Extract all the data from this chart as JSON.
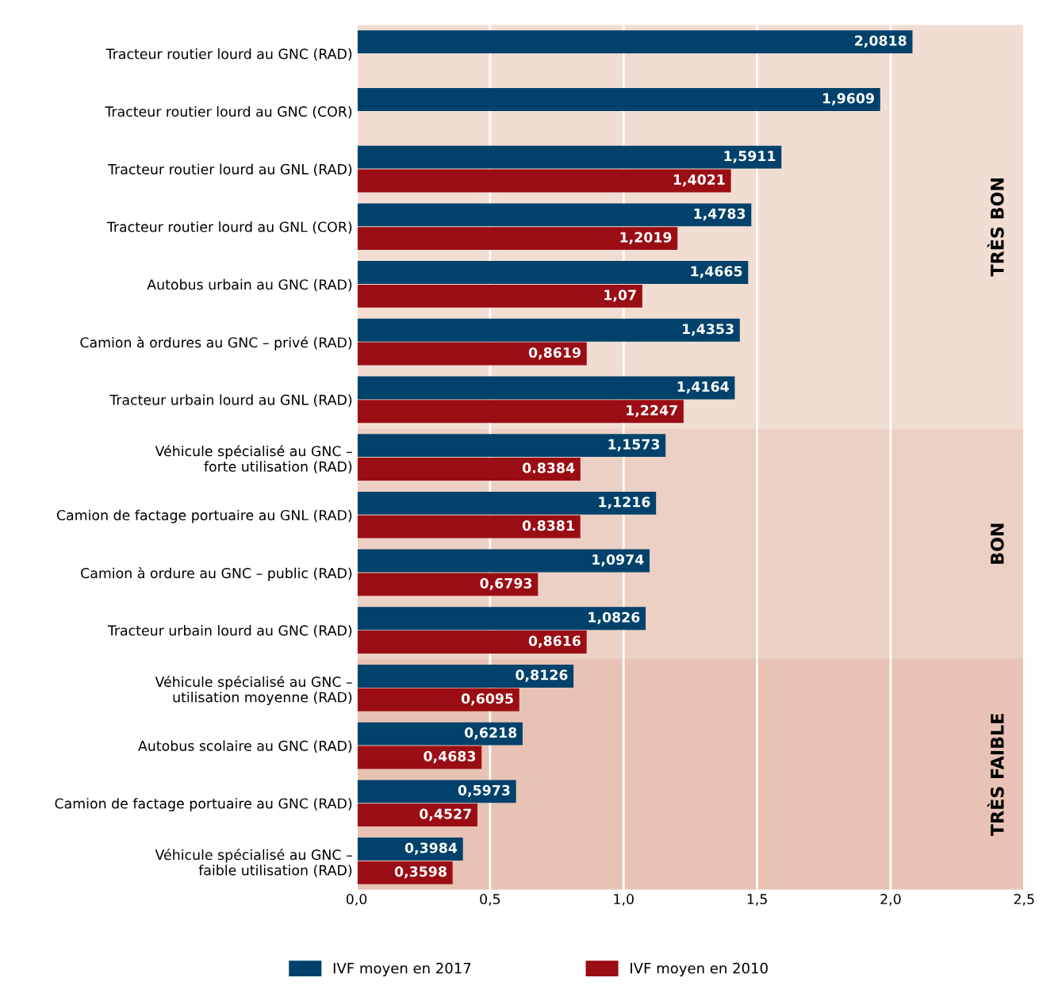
{
  "chart_data": {
    "type": "bar",
    "orientation": "horizontal",
    "categories": [
      "Tracteur routier lourd au GNC (RAD)",
      "Tracteur routier lourd au GNC (COR)",
      "Tracteur routier lourd au GNL (RAD)",
      "Tracteur routier lourd au GNL (COR)",
      "Autobus urbain au GNC (RAD)",
      "Camion à ordures au GNC – privé (RAD)",
      "Tracteur urbain lourd au GNL (RAD)",
      "Véhicule spécialisé au GNC –\nforte utilisation (RAD)",
      "Camion de factage portuaire au GNL (RAD)",
      "Camion à ordure au GNC – public (RAD)",
      "Tracteur urbain lourd au GNC (RAD)",
      "Véhicule spécialisé au GNC –\nutilisation moyenne (RAD)",
      "Autobus scolaire au GNC (RAD)",
      "Camion de factage portuaire au GNC (RAD)",
      "Véhicule spécialisé au GNC –\nfaible utilisation (RAD)"
    ],
    "series": [
      {
        "name": "IVF moyen en 2017",
        "color": "#00426b",
        "values": [
          2.0818,
          1.9609,
          1.5911,
          1.4783,
          1.4665,
          1.4353,
          1.4164,
          1.1573,
          1.1216,
          1.0974,
          1.0826,
          0.8126,
          0.6218,
          0.5973,
          0.3984
        ],
        "value_labels": [
          "2,0818",
          "1,9609",
          "1,5911",
          "1,4783",
          "1,4665",
          "1,4353",
          "1,4164",
          "1,1573",
          "1,1216",
          "1,0974",
          "1,0826",
          "0,8126",
          "0,6218",
          "0,5973",
          "0,3984"
        ]
      },
      {
        "name": "IVF moyen en 2010",
        "color": "#9b0d14",
        "values": [
          null,
          null,
          1.4021,
          1.2019,
          1.07,
          0.8619,
          1.2247,
          0.8384,
          0.8381,
          0.6793,
          0.8616,
          0.6095,
          0.4683,
          0.4527,
          0.3598
        ],
        "value_labels": [
          null,
          null,
          "1,4021",
          "1,2019",
          "1,07",
          "0,8619",
          "1,2247",
          "0.8384",
          "0.8381",
          "0,6793",
          "0,8616",
          "0,6095",
          "0,4683",
          "0,4527",
          "0,3598"
        ]
      }
    ],
    "xlim": [
      0,
      2.5
    ],
    "xticks": [
      {
        "value": 0,
        "label": "0,0"
      },
      {
        "value": 0.5,
        "label": "0,5"
      },
      {
        "value": 1.0,
        "label": "1,0"
      },
      {
        "value": 1.5,
        "label": "1,5"
      },
      {
        "value": 2.0,
        "label": "2,0"
      },
      {
        "value": 2.5,
        "label": "2,5"
      }
    ],
    "bands": [
      {
        "axis": "y",
        "from": "Tracteur routier lourd au GNC (RAD)",
        "to": "Tracteur urbain lourd au GNL (RAD)",
        "label": "TRÈS BON",
        "color": "#f2ddd3"
      },
      {
        "axis": "y",
        "from": "Véhicule spécialisé au GNC –\nforte utilisation (RAD)",
        "to": "Tracteur urbain lourd au GNC (RAD)",
        "label": "BON",
        "color": "#edd0c4"
      },
      {
        "axis": "y",
        "from": "Véhicule spécialisé au GNC –\nutilisation moyenne (RAD)",
        "to": "Véhicule spécialisé au GNC –\nfaible utilisation (RAD)",
        "label": "TRÈS FAIBLE",
        "color": "#e8c3b5"
      }
    ],
    "grid": "x",
    "legend": "bottom"
  }
}
